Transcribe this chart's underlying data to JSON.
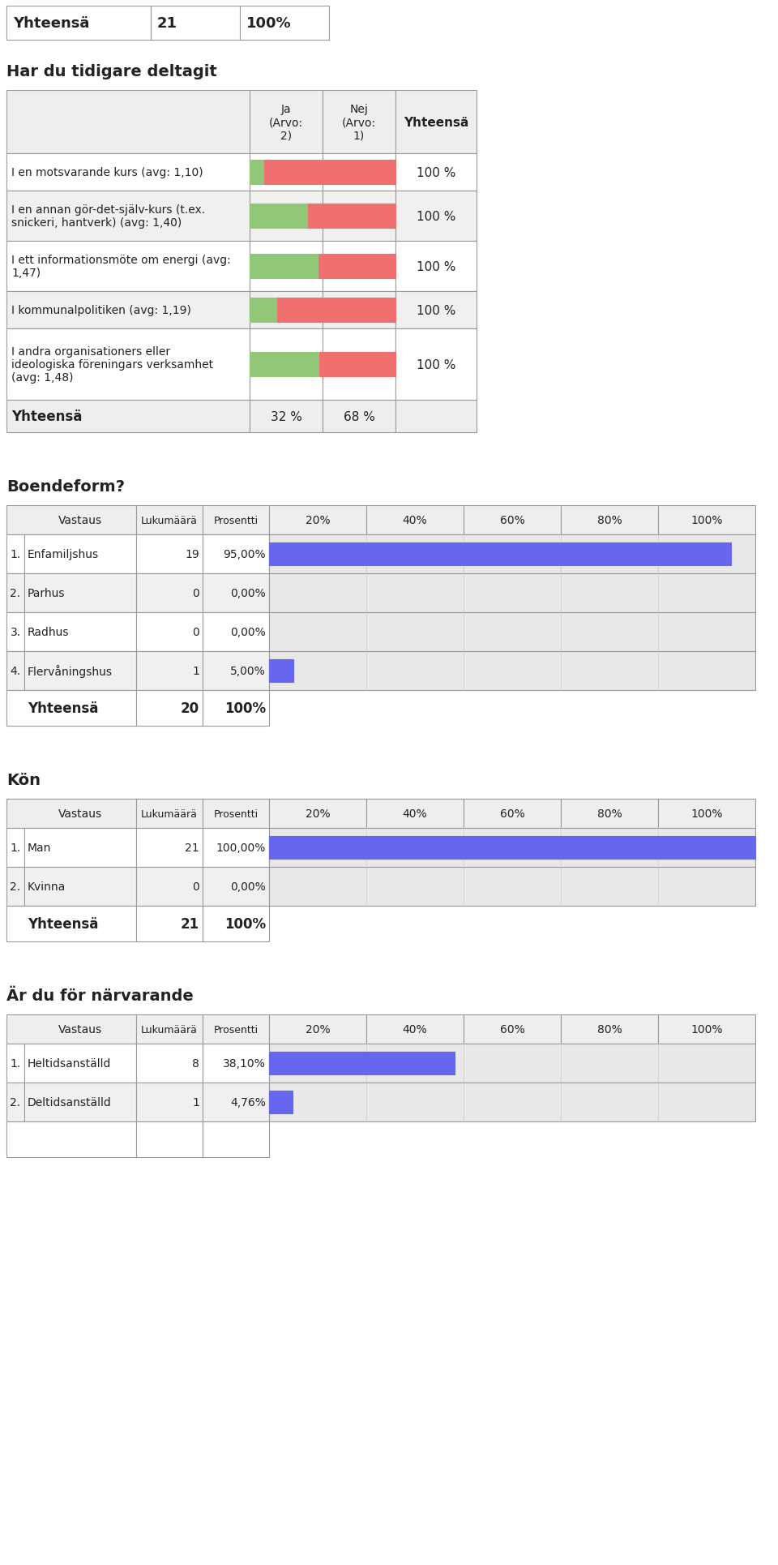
{
  "background_color": "#ffffff",
  "top_table": {
    "label": "Yhteensä",
    "value": "21",
    "pct": "100%"
  },
  "section1_title": "Har du tidigare deltagit",
  "section1_rows": [
    {
      "label": "I en motsvarande kurs (avg: 1,10)",
      "ja_pct": 0.1,
      "nej_pct": 0.9,
      "total": "100 %"
    },
    {
      "label": "I en annan gör-det-själv-kurs (t.ex.\nsnickeri, hantverk) (avg: 1,40)",
      "ja_pct": 0.4,
      "nej_pct": 0.6,
      "total": "100 %"
    },
    {
      "label": "I ett informationsmöte om energi (avg:\n1,47)",
      "ja_pct": 0.47,
      "nej_pct": 0.53,
      "total": "100 %"
    },
    {
      "label": "I kommunalpolitiken (avg: 1,19)",
      "ja_pct": 0.19,
      "nej_pct": 0.81,
      "total": "100 %"
    },
    {
      "label": "I andra organisationers eller\nideologiska föreningars verksamhet\n(avg: 1,48)",
      "ja_pct": 0.48,
      "nej_pct": 0.52,
      "total": "100 %"
    }
  ],
  "section1_footer_ja": "32 %",
  "section1_footer_nej": "68 %",
  "green_color": "#90c878",
  "red_color": "#f07070",
  "section2_title": "Boendeform?",
  "section2_rows": [
    {
      "num": "1.",
      "label": "Enfamiljshus",
      "count": "19",
      "pct": "95,00%",
      "bar_pct": 0.95
    },
    {
      "num": "2.",
      "label": "Parhus",
      "count": "0",
      "pct": "0,00%",
      "bar_pct": 0.0
    },
    {
      "num": "3.",
      "label": "Radhus",
      "count": "0",
      "pct": "0,00%",
      "bar_pct": 0.0
    },
    {
      "num": "4.",
      "label": "Flervåningshus",
      "count": "1",
      "pct": "5,00%",
      "bar_pct": 0.05
    }
  ],
  "section2_footer": {
    "label": "Yhteensä",
    "count": "20",
    "pct": "100%"
  },
  "blue_color": "#6666ee",
  "section3_title": "Kön",
  "section3_rows": [
    {
      "num": "1.",
      "label": "Man",
      "count": "21",
      "pct": "100,00%",
      "bar_pct": 1.0
    },
    {
      "num": "2.",
      "label": "Kvinna",
      "count": "0",
      "pct": "0,00%",
      "bar_pct": 0.0
    }
  ],
  "section3_footer": {
    "label": "Yhteensä",
    "count": "21",
    "pct": "100%"
  },
  "section4_title": "Är du för närvarande",
  "section4_rows": [
    {
      "num": "1.",
      "label": "Heltidsanställd",
      "count": "8",
      "pct": "38,10%",
      "bar_pct": 0.381
    },
    {
      "num": "2.",
      "label": "Deltidsanställd",
      "count": "1",
      "pct": "4,76%",
      "bar_pct": 0.0476
    }
  ]
}
